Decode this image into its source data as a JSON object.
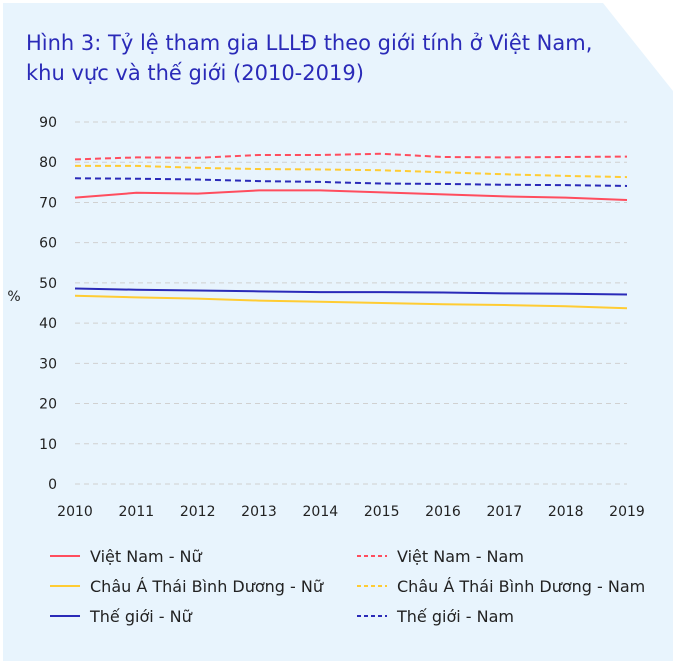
{
  "chart_data": {
    "type": "line",
    "title": "Hình 3: Tỷ lệ tham gia LLLĐ theo giới tính ở Việt Nam, khu vực và thế giới (2010-2019)",
    "xlabel": "",
    "ylabel": "%",
    "x": [
      "2010",
      "2011",
      "2012",
      "2013",
      "2014",
      "2015",
      "2016",
      "2017",
      "2018",
      "2019"
    ],
    "ylim": [
      0,
      90
    ],
    "yticks": [
      0,
      10,
      20,
      30,
      40,
      50,
      60,
      70,
      80,
      90
    ],
    "grid": true,
    "legend_placement": "bottom",
    "series": [
      {
        "name": "Việt Nam - Nữ",
        "color": "#ff4d5e",
        "dash": false,
        "values": [
          71.2,
          72.4,
          72.2,
          73.0,
          73.0,
          72.5,
          72.0,
          71.5,
          71.2,
          70.6
        ]
      },
      {
        "name": "Việt Nam - Nam",
        "color": "#ff4d5e",
        "dash": true,
        "values": [
          80.7,
          81.2,
          81.1,
          81.8,
          81.8,
          82.1,
          81.3,
          81.2,
          81.3,
          81.4
        ]
      },
      {
        "name": "Châu Á Thái Bình Dương - Nữ",
        "color": "#ffcc33",
        "dash": false,
        "values": [
          46.8,
          46.4,
          46.1,
          45.6,
          45.3,
          45.0,
          44.7,
          44.5,
          44.2,
          43.7
        ]
      },
      {
        "name": "Châu Á Thái Bình Dương - Nam",
        "color": "#ffcc33",
        "dash": true,
        "values": [
          79.1,
          79.1,
          78.6,
          78.3,
          78.2,
          78.0,
          77.5,
          77.0,
          76.6,
          76.3
        ]
      },
      {
        "name": "Thế giới - Nữ",
        "color": "#2a2ab8",
        "dash": false,
        "values": [
          48.6,
          48.3,
          48.1,
          47.9,
          47.7,
          47.7,
          47.6,
          47.4,
          47.3,
          47.1
        ]
      },
      {
        "name": "Thế giới - Nam",
        "color": "#2a2ab8",
        "dash": true,
        "values": [
          76.0,
          75.9,
          75.7,
          75.3,
          75.1,
          74.7,
          74.6,
          74.4,
          74.3,
          74.1
        ]
      }
    ]
  }
}
